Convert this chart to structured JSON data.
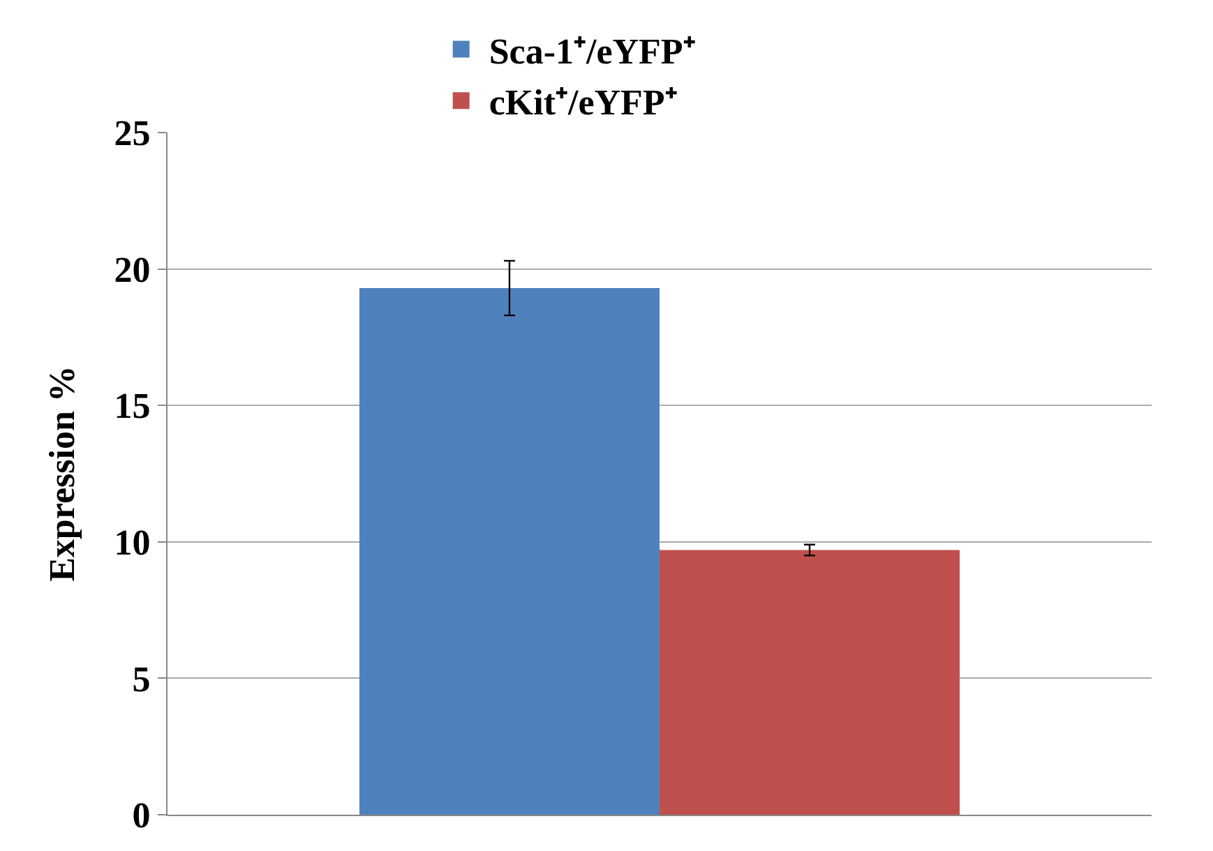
{
  "chart_data": {
    "type": "bar",
    "ylabel": "Expression %",
    "categories": [
      null
    ],
    "series": [
      {
        "name": "Sca-1⁺/eYFP⁺",
        "color": "#4f81bd",
        "values": [
          19.3
        ],
        "errors": [
          1.0
        ]
      },
      {
        "name": "cKit⁺/eYFP⁺",
        "color": "#c0504d",
        "values": [
          9.7
        ],
        "errors": [
          0.2
        ]
      }
    ],
    "ylim": [
      0,
      25
    ],
    "yticks": [
      0,
      5,
      10,
      15,
      20,
      25
    ],
    "grid": "y",
    "legend": "top"
  }
}
